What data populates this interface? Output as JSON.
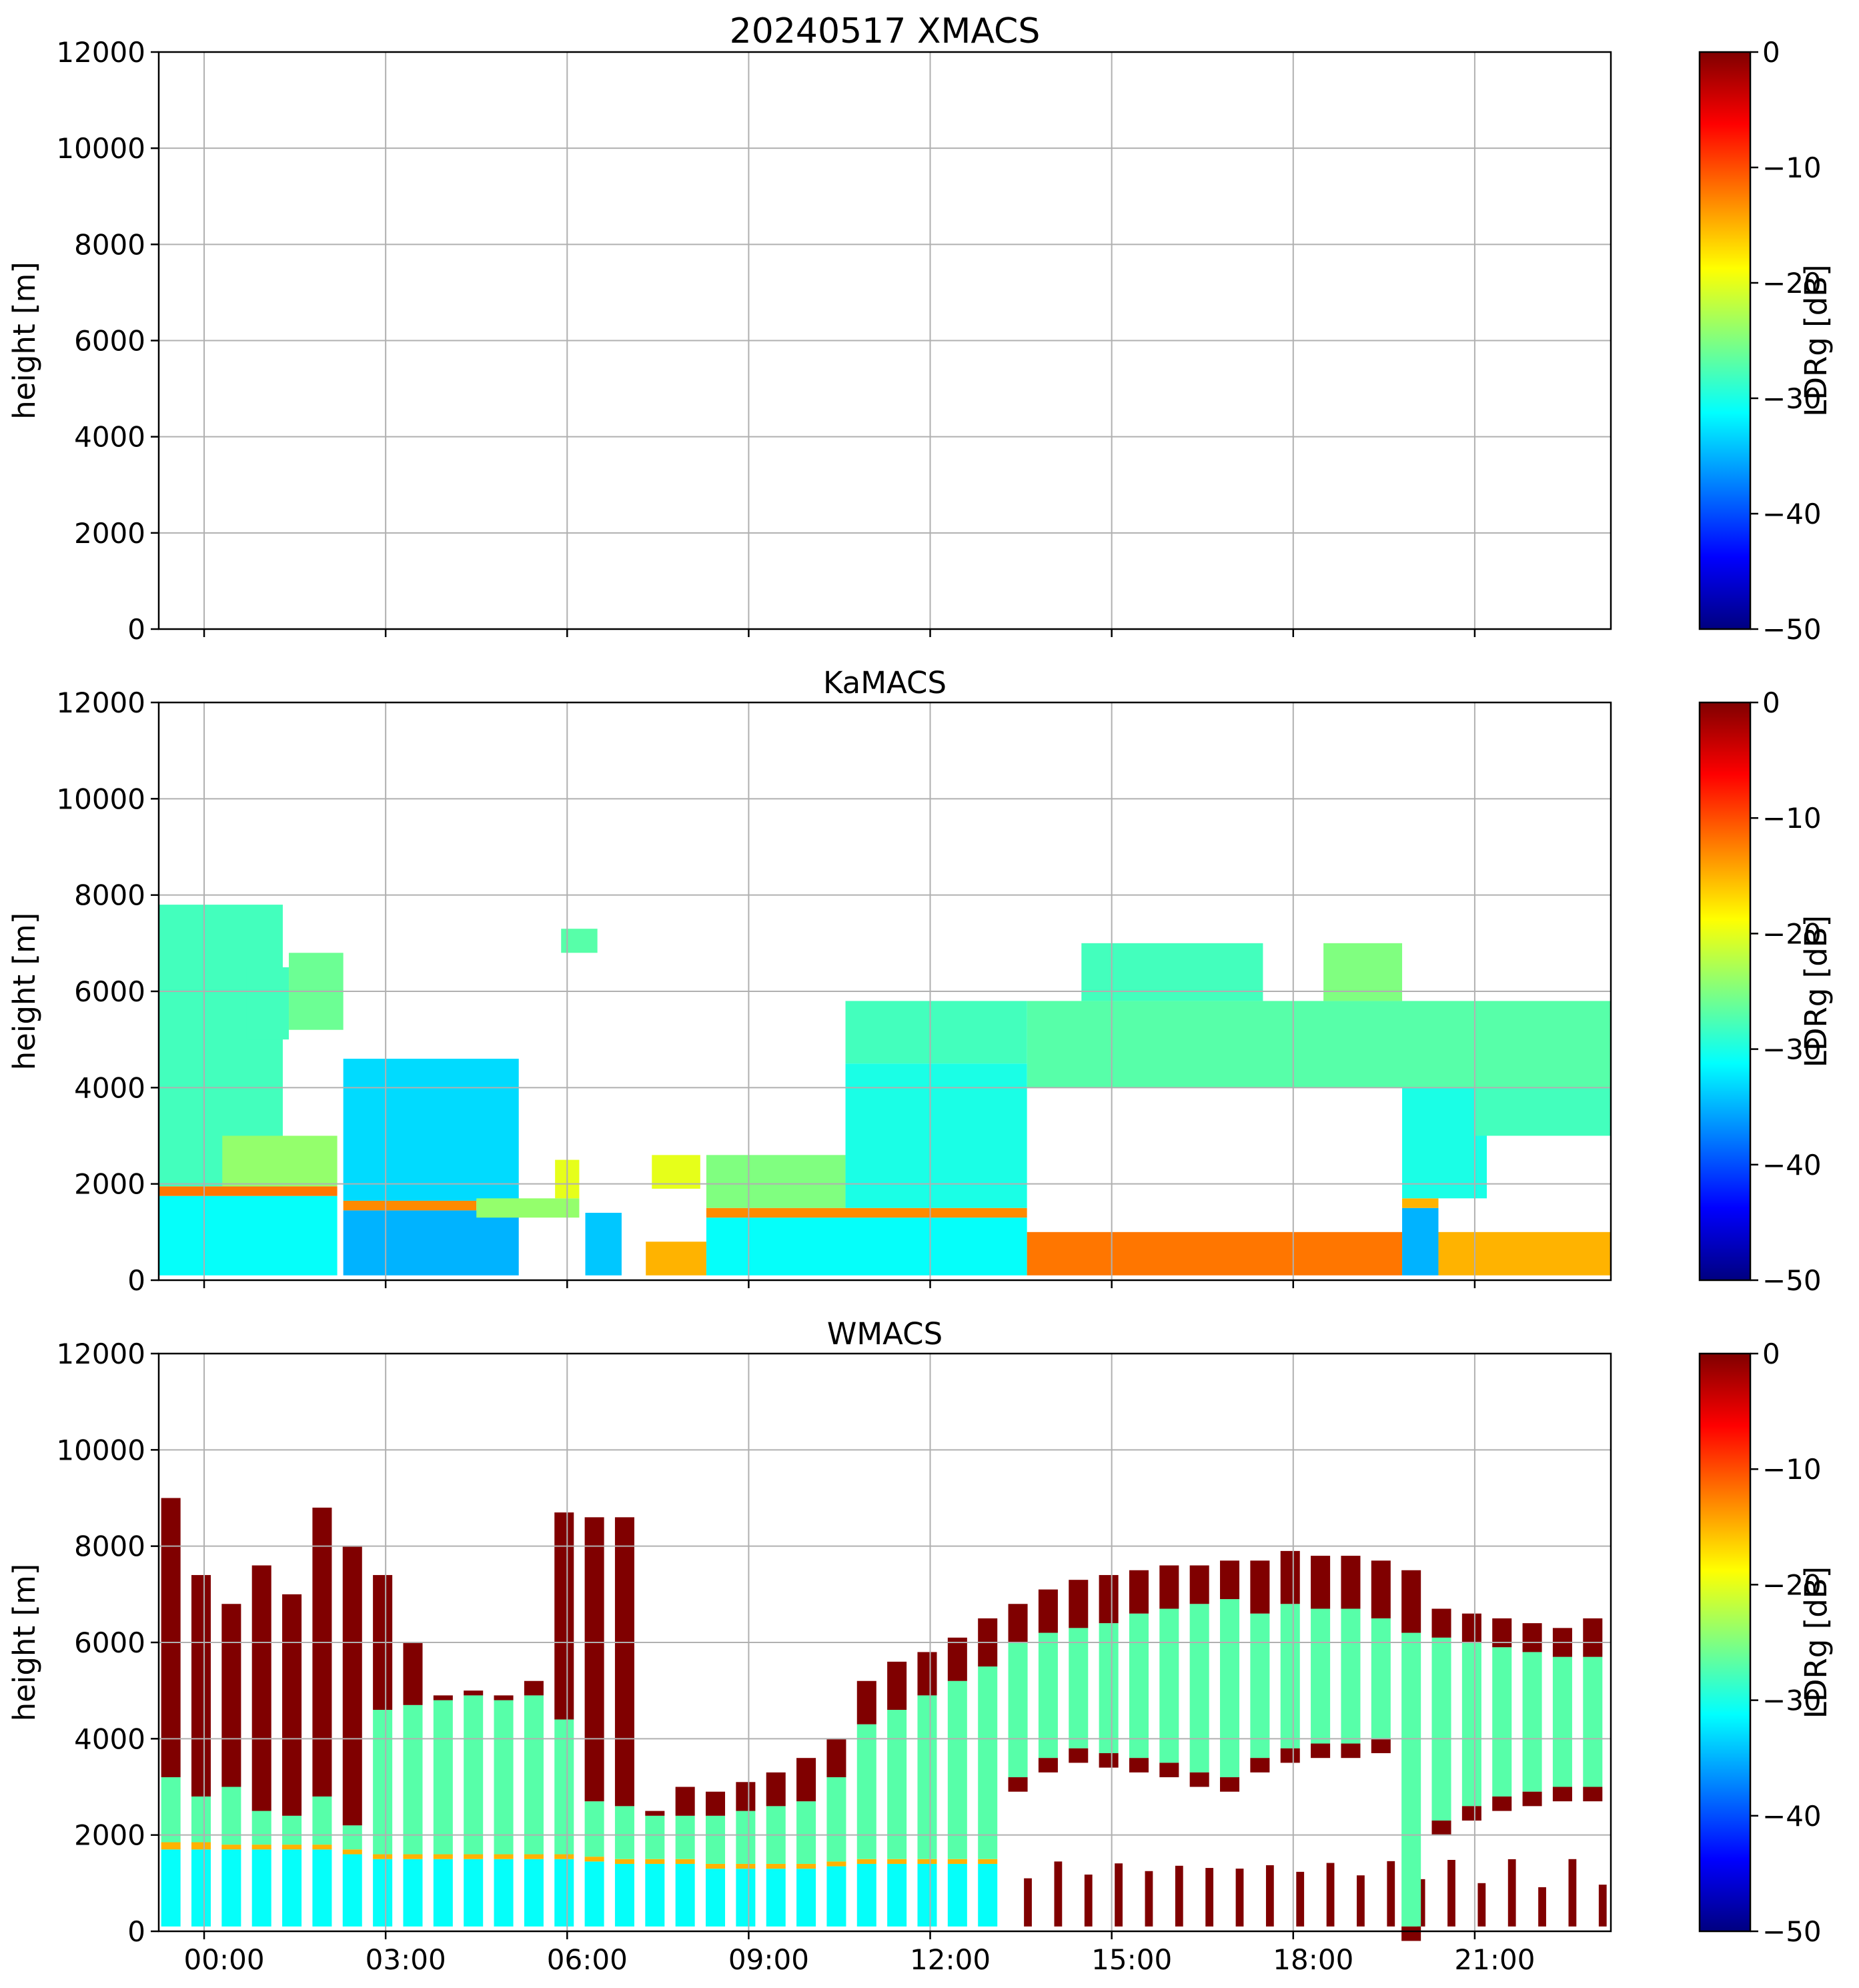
{
  "figure": {
    "colormap": "jet",
    "colormap_stops": [
      "#000080",
      "#0000ff",
      "#0080ff",
      "#00ffff",
      "#80ff80",
      "#ffff00",
      "#ff8000",
      "#ff0000",
      "#800000"
    ]
  },
  "chart_data": [
    {
      "id": "xmacs",
      "type": "heatmap",
      "title": "20240517 XMACS",
      "ylabel": "height [m]",
      "ylim": [
        0,
        12000
      ],
      "yticks": [
        0,
        2000,
        4000,
        6000,
        8000,
        10000,
        12000
      ],
      "xlim_hours": [
        -0.75,
        23.25
      ],
      "xticks_hours": [
        0,
        3,
        6,
        9,
        12,
        15,
        18,
        21
      ],
      "xtick_labels": [],
      "grid": true,
      "colorbar": {
        "label": "LDRg [dB]",
        "ticks": [
          0,
          -10,
          -20,
          -30,
          -40,
          -50
        ],
        "range": [
          -50,
          0
        ]
      },
      "regions": []
    },
    {
      "id": "kamacs",
      "type": "heatmap",
      "title": "KaMACS",
      "ylabel": "height [m]",
      "ylim": [
        0,
        12000
      ],
      "yticks": [
        0,
        2000,
        4000,
        6000,
        8000,
        10000,
        12000
      ],
      "xlim_hours": [
        -0.75,
        23.25
      ],
      "xticks_hours": [
        0,
        3,
        6,
        9,
        12,
        15,
        18,
        21
      ],
      "xtick_labels": [],
      "grid": true,
      "colorbar": {
        "label": "LDRg [dB]",
        "ticks": [
          0,
          -10,
          -20,
          -30,
          -40,
          -50
        ],
        "range": [
          -50,
          0
        ]
      },
      "regions": [
        {
          "t0": -0.75,
          "t1": 2.2,
          "h0": 100,
          "h1": 1750,
          "ldr": -31
        },
        {
          "t0": -0.75,
          "t1": 2.2,
          "h0": 1750,
          "h1": 1950,
          "ldr": -12
        },
        {
          "t0": -0.75,
          "t1": 1.3,
          "h0": 1950,
          "h1": 7800,
          "ldr": -28
        },
        {
          "t0": 0.3,
          "t1": 2.2,
          "h0": 1950,
          "h1": 3000,
          "ldr": -24
        },
        {
          "t0": 0.7,
          "t1": 1.4,
          "h0": 5000,
          "h1": 6500,
          "ldr": -28
        },
        {
          "t0": 1.4,
          "t1": 2.3,
          "h0": 5200,
          "h1": 6800,
          "ldr": -26
        },
        {
          "t0": 2.3,
          "t1": 5.2,
          "h0": 100,
          "h1": 1450,
          "ldr": -35
        },
        {
          "t0": 2.3,
          "t1": 4.5,
          "h0": 1450,
          "h1": 1650,
          "ldr": -13
        },
        {
          "t0": 2.3,
          "t1": 5.2,
          "h0": 1650,
          "h1": 4600,
          "ldr": -33
        },
        {
          "t0": 4.5,
          "t1": 6.2,
          "h0": 1300,
          "h1": 1700,
          "ldr": -24
        },
        {
          "t0": 5.8,
          "t1": 6.2,
          "h0": 1700,
          "h1": 2500,
          "ldr": -20
        },
        {
          "t0": 6.3,
          "t1": 6.9,
          "h0": 100,
          "h1": 1400,
          "ldr": -34
        },
        {
          "t0": 5.9,
          "t1": 6.5,
          "h0": 6800,
          "h1": 7300,
          "ldr": -27
        },
        {
          "t0": 7.3,
          "t1": 8.3,
          "h0": 100,
          "h1": 800,
          "ldr": -15
        },
        {
          "t0": 7.4,
          "t1": 8.2,
          "h0": 1900,
          "h1": 2600,
          "ldr": -20
        },
        {
          "t0": 8.3,
          "t1": 13.6,
          "h0": 100,
          "h1": 1300,
          "ldr": -31
        },
        {
          "t0": 8.3,
          "t1": 13.6,
          "h0": 1300,
          "h1": 1500,
          "ldr": -13
        },
        {
          "t0": 8.3,
          "t1": 10.6,
          "h0": 1500,
          "h1": 2600,
          "ldr": -25
        },
        {
          "t0": 10.6,
          "t1": 13.6,
          "h0": 1500,
          "h1": 4500,
          "ldr": -30
        },
        {
          "t0": 10.6,
          "t1": 13.6,
          "h0": 4500,
          "h1": 5800,
          "ldr": -28
        },
        {
          "t0": 13.6,
          "t1": 19.8,
          "h0": 100,
          "h1": 1000,
          "ldr": -12
        },
        {
          "t0": 13.6,
          "t1": 23.25,
          "h0": 4000,
          "h1": 5800,
          "ldr": -27
        },
        {
          "t0": 14.5,
          "t1": 17.5,
          "h0": 5800,
          "h1": 7000,
          "ldr": -28
        },
        {
          "t0": 18.5,
          "t1": 19.8,
          "h0": 5800,
          "h1": 7000,
          "ldr": -25
        },
        {
          "t0": 19.8,
          "t1": 20.4,
          "h0": 100,
          "h1": 1500,
          "ldr": -35
        },
        {
          "t0": 19.8,
          "t1": 20.4,
          "h0": 1500,
          "h1": 1700,
          "ldr": -15
        },
        {
          "t0": 19.8,
          "t1": 21.2,
          "h0": 1700,
          "h1": 4000,
          "ldr": -30
        },
        {
          "t0": 20.4,
          "t1": 23.25,
          "h0": 100,
          "h1": 1000,
          "ldr": -15
        },
        {
          "t0": 21.0,
          "t1": 23.25,
          "h0": 3000,
          "h1": 4000,
          "ldr": -28
        }
      ]
    },
    {
      "id": "wmacs",
      "type": "heatmap",
      "title": "WMACS",
      "ylabel": "height [m]",
      "ylim": [
        0,
        12000
      ],
      "yticks": [
        0,
        2000,
        4000,
        6000,
        8000,
        10000,
        12000
      ],
      "xlim_hours": [
        -0.75,
        23.25
      ],
      "xticks_hours": [
        0,
        3,
        6,
        9,
        12,
        15,
        18,
        21
      ],
      "xtick_labels": [
        "00:00",
        "03:00",
        "06:00",
        "09:00",
        "12:00",
        "15:00",
        "18:00",
        "21:00"
      ],
      "grid": true,
      "colorbar": {
        "label": "LDRg [dB]",
        "ticks": [
          0,
          -10,
          -20,
          -30,
          -40,
          -50
        ],
        "range": [
          -50,
          0
        ]
      },
      "profile_bars": [
        {
          "t": -0.55,
          "base": 1700,
          "melt": 1850,
          "ice_top": 3200,
          "top": 9000
        },
        {
          "t": -0.05,
          "base": 1700,
          "melt": 1850,
          "ice_top": 2800,
          "top": 7400
        },
        {
          "t": 0.45,
          "base": 1700,
          "melt": 1800,
          "ice_top": 3000,
          "top": 6800
        },
        {
          "t": 0.95,
          "base": 1700,
          "melt": 1800,
          "ice_top": 2500,
          "top": 7600
        },
        {
          "t": 1.45,
          "base": 1700,
          "melt": 1800,
          "ice_top": 2400,
          "top": 7000
        },
        {
          "t": 1.95,
          "base": 1700,
          "melt": 1800,
          "ice_top": 2800,
          "top": 8800
        },
        {
          "t": 2.45,
          "base": 1600,
          "melt": 1700,
          "ice_top": 2200,
          "top": 8000
        },
        {
          "t": 2.95,
          "base": 1500,
          "melt": 1600,
          "ice_top": 4600,
          "top": 7400
        },
        {
          "t": 3.45,
          "base": 1500,
          "melt": 1600,
          "ice_top": 4700,
          "top": 6000
        },
        {
          "t": 3.95,
          "base": 1500,
          "melt": 1600,
          "ice_top": 4800,
          "top": 4900
        },
        {
          "t": 4.45,
          "base": 1500,
          "melt": 1600,
          "ice_top": 4900,
          "top": 5000
        },
        {
          "t": 4.95,
          "base": 1500,
          "melt": 1600,
          "ice_top": 4800,
          "top": 4900
        },
        {
          "t": 5.45,
          "base": 1500,
          "melt": 1600,
          "ice_top": 4900,
          "top": 5200
        },
        {
          "t": 5.95,
          "base": 1500,
          "melt": 1600,
          "ice_top": 4400,
          "top": 8700
        },
        {
          "t": 6.45,
          "base": 1450,
          "melt": 1550,
          "ice_top": 2700,
          "top": 8600
        },
        {
          "t": 6.95,
          "base": 1400,
          "melt": 1500,
          "ice_top": 2600,
          "top": 8600
        },
        {
          "t": 7.45,
          "base": 1400,
          "melt": 1500,
          "ice_top": 2400,
          "top": 2500
        },
        {
          "t": 7.95,
          "base": 1400,
          "melt": 1500,
          "ice_top": 2400,
          "top": 3000
        },
        {
          "t": 8.45,
          "base": 1300,
          "melt": 1400,
          "ice_top": 2400,
          "top": 2900
        },
        {
          "t": 8.95,
          "base": 1300,
          "melt": 1400,
          "ice_top": 2500,
          "top": 3100
        },
        {
          "t": 9.45,
          "base": 1300,
          "melt": 1400,
          "ice_top": 2600,
          "top": 3300
        },
        {
          "t": 9.95,
          "base": 1300,
          "melt": 1400,
          "ice_top": 2700,
          "top": 3600
        },
        {
          "t": 10.45,
          "base": 1350,
          "melt": 1450,
          "ice_top": 3200,
          "top": 4000
        },
        {
          "t": 10.95,
          "base": 1400,
          "melt": 1500,
          "ice_top": 4300,
          "top": 5200
        },
        {
          "t": 11.45,
          "base": 1400,
          "melt": 1500,
          "ice_top": 4600,
          "top": 5600
        },
        {
          "t": 11.95,
          "base": 1400,
          "melt": 1500,
          "ice_top": 4900,
          "top": 5800
        },
        {
          "t": 12.45,
          "base": 1400,
          "melt": 1500,
          "ice_top": 5200,
          "top": 6100
        },
        {
          "t": 12.95,
          "base": 1400,
          "melt": 1500,
          "ice_top": 5500,
          "top": 6500
        },
        {
          "t": 13.45,
          "base": 3200,
          "melt": 3200,
          "ice_top": 6000,
          "top": 6800
        },
        {
          "t": 13.95,
          "base": 3600,
          "melt": 3600,
          "ice_top": 6200,
          "top": 7100
        },
        {
          "t": 14.45,
          "base": 3800,
          "melt": 3800,
          "ice_top": 6300,
          "top": 7300
        },
        {
          "t": 14.95,
          "base": 3700,
          "melt": 3700,
          "ice_top": 6400,
          "top": 7400
        },
        {
          "t": 15.45,
          "base": 3600,
          "melt": 3600,
          "ice_top": 6600,
          "top": 7500
        },
        {
          "t": 15.95,
          "base": 3500,
          "melt": 3500,
          "ice_top": 6700,
          "top": 7600
        },
        {
          "t": 16.45,
          "base": 3300,
          "melt": 3300,
          "ice_top": 6800,
          "top": 7600
        },
        {
          "t": 16.95,
          "base": 3200,
          "melt": 3200,
          "ice_top": 6900,
          "top": 7700
        },
        {
          "t": 17.45,
          "base": 3600,
          "melt": 3600,
          "ice_top": 6600,
          "top": 7700
        },
        {
          "t": 17.95,
          "base": 3800,
          "melt": 3800,
          "ice_top": 6800,
          "top": 7900
        },
        {
          "t": 18.45,
          "base": 3900,
          "melt": 3900,
          "ice_top": 6700,
          "top": 7800
        },
        {
          "t": 18.95,
          "base": 3900,
          "melt": 3900,
          "ice_top": 6700,
          "top": 7800
        },
        {
          "t": 19.45,
          "base": 4000,
          "melt": 4000,
          "ice_top": 6500,
          "top": 7700
        },
        {
          "t": 19.95,
          "base": 100,
          "melt": 100,
          "ice_top": 6200,
          "top": 7500
        },
        {
          "t": 20.45,
          "base": 2300,
          "melt": 2300,
          "ice_top": 6100,
          "top": 6700
        },
        {
          "t": 20.95,
          "base": 2600,
          "melt": 2600,
          "ice_top": 6000,
          "top": 6600
        },
        {
          "t": 21.45,
          "base": 2800,
          "melt": 2800,
          "ice_top": 5900,
          "top": 6500
        },
        {
          "t": 21.95,
          "base": 2900,
          "melt": 2900,
          "ice_top": 5800,
          "top": 6400
        },
        {
          "t": 22.45,
          "base": 3000,
          "melt": 3000,
          "ice_top": 5700,
          "top": 6300
        },
        {
          "t": 22.95,
          "base": 3000,
          "melt": 3000,
          "ice_top": 5700,
          "top": 6500
        }
      ],
      "liquid_ldr": -31,
      "ice_ldr": -27,
      "edge_ldr": 0,
      "melt_ldr": -15,
      "surface_clutter_hours": [
        13.5,
        23.25
      ],
      "surface_clutter_top": 1500
    }
  ]
}
